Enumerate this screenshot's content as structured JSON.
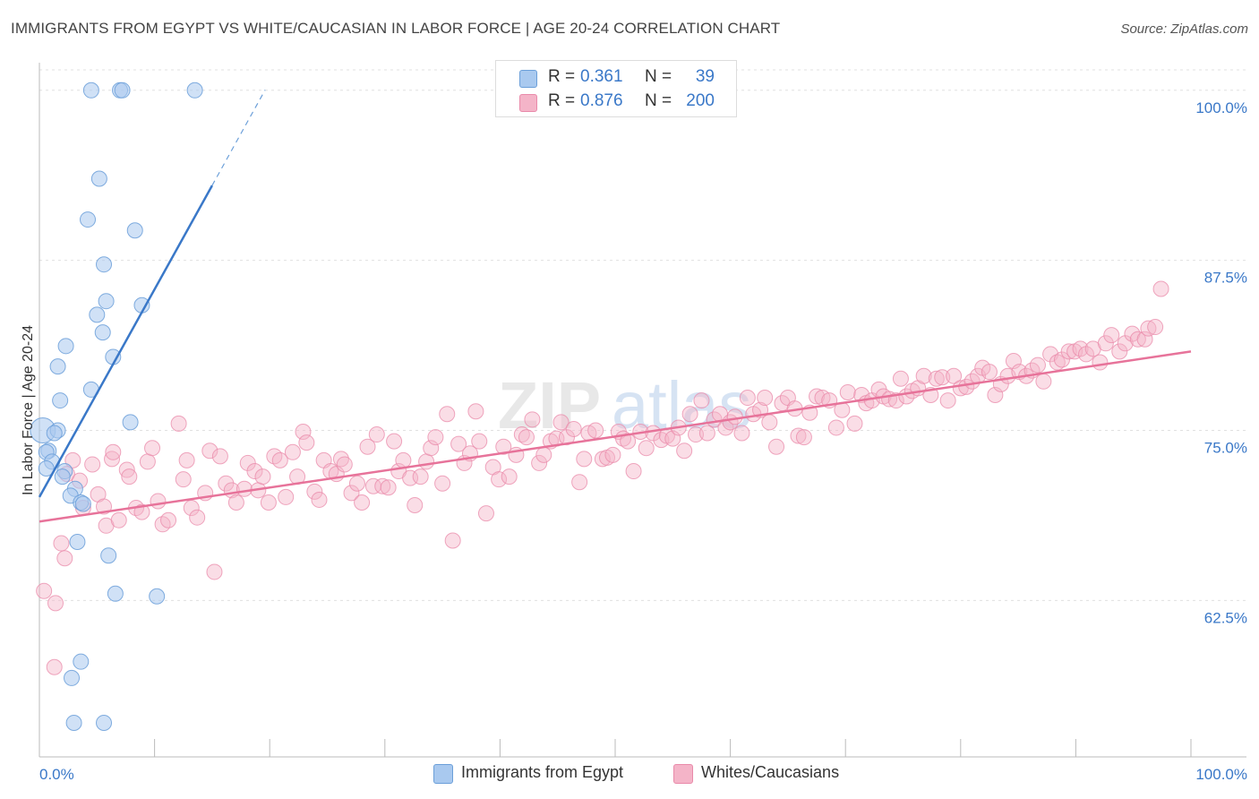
{
  "title": "IMMIGRANTS FROM EGYPT VS WHITE/CAUCASIAN IN LABOR FORCE | AGE 20-24 CORRELATION CHART",
  "source": "Source: ZipAtlas.com",
  "watermark": "ZIPatlas",
  "colors": {
    "blue_fill": "#a9c9ef",
    "blue_stroke": "#6b9fd9",
    "blue_line": "#3a78c8",
    "pink_fill": "#f4b4c8",
    "pink_stroke": "#e98aaa",
    "pink_line": "#e7739a",
    "tick_label": "#3a78c8",
    "grid": "#e0e0e0"
  },
  "stats": {
    "rows": [
      {
        "r_label": "R =",
        "r_value": "0.361",
        "n_label": "N =",
        "n_value": "39",
        "color": "#a9c9ef"
      },
      {
        "r_label": "R =",
        "r_value": "0.876",
        "n_label": "N =",
        "n_value": "200",
        "color": "#f4b4c8"
      }
    ]
  },
  "legend": {
    "items": [
      {
        "label": "Immigrants from Egypt",
        "color": "#a9c9ef"
      },
      {
        "label": "Whites/Caucasians",
        "color": "#f4b4c8"
      }
    ]
  },
  "chart_data": {
    "type": "scatter",
    "title": "IMMIGRANTS FROM EGYPT VS WHITE/CAUCASIAN IN LABOR FORCE | AGE 20-24 CORRELATION CHART",
    "xlabel": "",
    "ylabel": "In Labor Force | Age 20-24",
    "xlim": [
      0,
      100
    ],
    "ylim": [
      51,
      101.5
    ],
    "x_tick_labels": [
      "0.0%",
      "100.0%"
    ],
    "y_ticks": [
      {
        "value": 62.5,
        "label": "62.5%"
      },
      {
        "value": 75.0,
        "label": "75.0%"
      },
      {
        "value": 87.5,
        "label": "87.5%"
      },
      {
        "value": 100.0,
        "label": "100.0%"
      }
    ],
    "grid": true,
    "series": [
      {
        "name": "Immigrants from Egypt",
        "color": "#a9c9ef",
        "trend": {
          "x0": 0.0,
          "y0": 70.1,
          "x1": 15.0,
          "y1": 93.0,
          "dash_to_x": 19.6
        },
        "points": [
          [
            4.5,
            100
          ],
          [
            7.0,
            100
          ],
          [
            7.2,
            100
          ],
          [
            13.5,
            100
          ],
          [
            5.2,
            93.5
          ],
          [
            4.2,
            90.5
          ],
          [
            8.3,
            89.7
          ],
          [
            5.6,
            87.2
          ],
          [
            5.8,
            84.5
          ],
          [
            8.9,
            84.2
          ],
          [
            5.0,
            83.5
          ],
          [
            5.5,
            82.2
          ],
          [
            2.3,
            81.2
          ],
          [
            6.4,
            80.4
          ],
          [
            1.6,
            79.7
          ],
          [
            4.5,
            78.0
          ],
          [
            1.8,
            77.2
          ],
          [
            7.9,
            75.6
          ],
          [
            0.3,
            75.0
          ],
          [
            1.6,
            75.0
          ],
          [
            1.3,
            74.8
          ],
          [
            0.8,
            73.5
          ],
          [
            0.6,
            73.4
          ],
          [
            1.1,
            72.7
          ],
          [
            0.6,
            72.2
          ],
          [
            2.2,
            72.0
          ],
          [
            2.0,
            71.6
          ],
          [
            3.1,
            70.7
          ],
          [
            2.7,
            70.2
          ],
          [
            3.6,
            69.7
          ],
          [
            3.8,
            69.6
          ],
          [
            3.3,
            66.8
          ],
          [
            6.0,
            65.8
          ],
          [
            6.6,
            63.0
          ],
          [
            10.2,
            62.8
          ],
          [
            3.6,
            58.0
          ],
          [
            2.8,
            56.8
          ],
          [
            3.0,
            53.5
          ],
          [
            5.6,
            53.5
          ]
        ]
      },
      {
        "name": "Whites/Caucasians",
        "color": "#f4b4c8",
        "trend": {
          "x0": 0.0,
          "y0": 68.3,
          "x1": 100.0,
          "y1": 80.8
        },
        "points": [
          [
            0.4,
            63.2
          ],
          [
            1.4,
            62.3
          ],
          [
            1.3,
            57.6
          ],
          [
            1.9,
            66.7
          ],
          [
            2.2,
            65.6
          ],
          [
            2.4,
            71.8
          ],
          [
            2.9,
            72.8
          ],
          [
            3.5,
            71.3
          ],
          [
            3.8,
            69.3
          ],
          [
            4.6,
            72.5
          ],
          [
            5.1,
            70.3
          ],
          [
            5.6,
            69.4
          ],
          [
            5.8,
            68.0
          ],
          [
            6.3,
            72.9
          ],
          [
            6.4,
            73.4
          ],
          [
            6.9,
            68.4
          ],
          [
            7.6,
            72.1
          ],
          [
            7.8,
            71.6
          ],
          [
            8.4,
            69.3
          ],
          [
            8.9,
            69.0
          ],
          [
            9.4,
            72.7
          ],
          [
            9.8,
            73.7
          ],
          [
            10.3,
            69.8
          ],
          [
            10.7,
            68.1
          ],
          [
            11.2,
            68.4
          ],
          [
            12.1,
            75.5
          ],
          [
            12.5,
            71.4
          ],
          [
            12.8,
            72.8
          ],
          [
            13.2,
            69.3
          ],
          [
            13.7,
            68.6
          ],
          [
            14.4,
            70.4
          ],
          [
            14.8,
            73.5
          ],
          [
            15.2,
            64.6
          ],
          [
            15.7,
            73.1
          ],
          [
            16.2,
            71.1
          ],
          [
            16.7,
            70.6
          ],
          [
            17.1,
            69.7
          ],
          [
            17.8,
            70.7
          ],
          [
            18.1,
            72.6
          ],
          [
            18.7,
            72.0
          ],
          [
            19.0,
            70.6
          ],
          [
            19.4,
            71.6
          ],
          [
            19.9,
            69.7
          ],
          [
            20.4,
            73.1
          ],
          [
            20.9,
            72.8
          ],
          [
            21.4,
            70.1
          ],
          [
            22.0,
            73.4
          ],
          [
            22.4,
            71.6
          ],
          [
            22.9,
            74.9
          ],
          [
            23.2,
            74.1
          ],
          [
            23.9,
            70.5
          ],
          [
            24.3,
            69.9
          ],
          [
            24.7,
            72.8
          ],
          [
            25.3,
            72.0
          ],
          [
            25.8,
            71.8
          ],
          [
            26.2,
            72.9
          ],
          [
            26.5,
            72.5
          ],
          [
            27.1,
            70.4
          ],
          [
            27.6,
            71.1
          ],
          [
            28.0,
            69.7
          ],
          [
            28.5,
            73.8
          ],
          [
            29.0,
            70.9
          ],
          [
            29.3,
            74.7
          ],
          [
            29.8,
            70.9
          ],
          [
            30.3,
            70.8
          ],
          [
            30.8,
            74.2
          ],
          [
            31.2,
            72.0
          ],
          [
            31.6,
            72.8
          ],
          [
            32.2,
            71.5
          ],
          [
            32.6,
            69.5
          ],
          [
            33.1,
            71.6
          ],
          [
            33.6,
            72.7
          ],
          [
            34.0,
            73.7
          ],
          [
            34.4,
            74.5
          ],
          [
            35.0,
            71.1
          ],
          [
            35.4,
            76.2
          ],
          [
            35.9,
            66.9
          ],
          [
            36.4,
            74.0
          ],
          [
            36.9,
            72.6
          ],
          [
            37.4,
            73.3
          ],
          [
            37.9,
            76.4
          ],
          [
            38.2,
            74.2
          ],
          [
            38.8,
            68.9
          ],
          [
            39.4,
            72.3
          ],
          [
            39.9,
            71.4
          ],
          [
            40.3,
            73.8
          ],
          [
            40.8,
            71.6
          ],
          [
            41.4,
            73.2
          ],
          [
            41.9,
            74.7
          ],
          [
            42.3,
            74.5
          ],
          [
            42.8,
            75.8
          ],
          [
            43.4,
            72.6
          ],
          [
            43.8,
            73.2
          ],
          [
            44.4,
            74.2
          ],
          [
            44.9,
            74.4
          ],
          [
            45.3,
            75.6
          ],
          [
            45.8,
            74.5
          ],
          [
            46.4,
            75.1
          ],
          [
            46.9,
            71.2
          ],
          [
            47.3,
            72.9
          ],
          [
            47.7,
            74.8
          ],
          [
            48.3,
            75.0
          ],
          [
            48.9,
            72.9
          ],
          [
            49.3,
            73.0
          ],
          [
            49.8,
            73.2
          ],
          [
            50.3,
            74.9
          ],
          [
            50.7,
            74.4
          ],
          [
            51.1,
            74.2
          ],
          [
            51.6,
            72.0
          ],
          [
            52.2,
            74.9
          ],
          [
            52.7,
            73.7
          ],
          [
            53.3,
            74.8
          ],
          [
            54.0,
            74.3
          ],
          [
            54.5,
            74.6
          ],
          [
            55.0,
            74.4
          ],
          [
            55.5,
            75.2
          ],
          [
            56.0,
            73.5
          ],
          [
            56.5,
            76.2
          ],
          [
            57.0,
            74.7
          ],
          [
            57.5,
            77.2
          ],
          [
            58.0,
            74.8
          ],
          [
            58.6,
            75.8
          ],
          [
            59.1,
            76.2
          ],
          [
            59.6,
            75.2
          ],
          [
            60.0,
            75.6
          ],
          [
            60.4,
            76.0
          ],
          [
            61.0,
            74.8
          ],
          [
            61.5,
            77.4
          ],
          [
            62.0,
            76.2
          ],
          [
            62.6,
            76.5
          ],
          [
            63.0,
            77.4
          ],
          [
            63.4,
            75.6
          ],
          [
            64.0,
            73.8
          ],
          [
            64.5,
            77.0
          ],
          [
            65.0,
            77.4
          ],
          [
            65.6,
            76.6
          ],
          [
            65.9,
            74.6
          ],
          [
            66.4,
            74.5
          ],
          [
            66.9,
            76.3
          ],
          [
            67.5,
            77.5
          ],
          [
            68.0,
            77.4
          ],
          [
            68.6,
            77.2
          ],
          [
            69.2,
            75.2
          ],
          [
            69.7,
            76.5
          ],
          [
            70.2,
            77.8
          ],
          [
            70.8,
            75.5
          ],
          [
            71.4,
            77.6
          ],
          [
            71.8,
            77.0
          ],
          [
            72.3,
            77.2
          ],
          [
            72.9,
            78.0
          ],
          [
            73.3,
            77.5
          ],
          [
            73.8,
            77.3
          ],
          [
            74.4,
            77.2
          ],
          [
            74.8,
            78.8
          ],
          [
            75.3,
            77.5
          ],
          [
            75.8,
            77.9
          ],
          [
            76.3,
            78.1
          ],
          [
            76.8,
            79.0
          ],
          [
            77.4,
            77.6
          ],
          [
            77.9,
            78.8
          ],
          [
            78.4,
            78.9
          ],
          [
            78.9,
            77.2
          ],
          [
            79.4,
            79.0
          ],
          [
            80.0,
            78.1
          ],
          [
            80.5,
            78.2
          ],
          [
            81.0,
            78.6
          ],
          [
            81.5,
            79.0
          ],
          [
            81.9,
            79.6
          ],
          [
            82.5,
            79.3
          ],
          [
            83.0,
            77.6
          ],
          [
            83.5,
            78.4
          ],
          [
            84.1,
            79.0
          ],
          [
            84.6,
            80.1
          ],
          [
            85.1,
            79.3
          ],
          [
            85.7,
            79.0
          ],
          [
            86.2,
            79.4
          ],
          [
            86.7,
            79.8
          ],
          [
            87.2,
            78.6
          ],
          [
            87.8,
            80.6
          ],
          [
            88.4,
            80.0
          ],
          [
            88.8,
            80.2
          ],
          [
            89.4,
            80.8
          ],
          [
            89.9,
            80.8
          ],
          [
            90.4,
            81.0
          ],
          [
            90.9,
            80.6
          ],
          [
            91.5,
            81.0
          ],
          [
            92.1,
            80.0
          ],
          [
            92.6,
            81.4
          ],
          [
            93.1,
            82.0
          ],
          [
            93.8,
            80.8
          ],
          [
            94.3,
            81.4
          ],
          [
            94.9,
            82.1
          ],
          [
            95.4,
            81.7
          ],
          [
            96.0,
            81.7
          ],
          [
            96.3,
            82.5
          ],
          [
            96.9,
            82.6
          ],
          [
            97.4,
            85.4
          ]
        ]
      }
    ]
  }
}
